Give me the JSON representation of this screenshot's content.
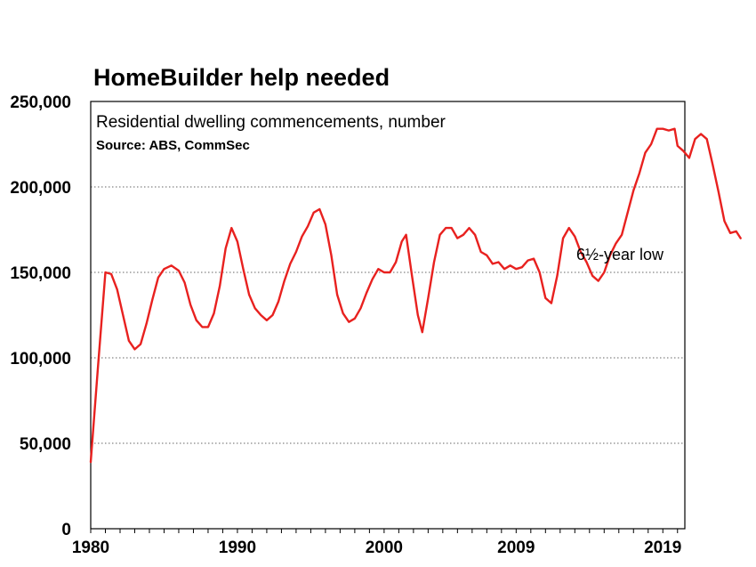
{
  "chart_data": {
    "type": "line",
    "title": "HomeBuilder help needed",
    "subtitle": "Residential dwelling commencements, number",
    "source": "Source: ABS, CommSec",
    "annotation": "6½-year low",
    "y_ticks": [
      0,
      50000,
      100000,
      150000,
      200000,
      250000
    ],
    "y_tick_labels": [
      "0",
      "50,000",
      "100,000",
      "150,000",
      "200,000",
      "250,000"
    ],
    "x_tick_labels": [
      "1980",
      "1990",
      "2000",
      "2009",
      "2019"
    ],
    "x_tick_values": [
      1980,
      1990,
      2000,
      2009,
      2019
    ],
    "xlim": [
      1980,
      2020.5
    ],
    "ylim": [
      0,
      250000
    ],
    "grid": "horizontal dotted",
    "line_color": "#e8211f",
    "series": [
      {
        "values": [
          [
            1980.0,
            39000
          ],
          [
            1980.5,
            95000
          ],
          [
            1981.0,
            150000
          ],
          [
            1981.4,
            149000
          ],
          [
            1981.8,
            140000
          ],
          [
            1982.2,
            125000
          ],
          [
            1982.6,
            110000
          ],
          [
            1983.0,
            105000
          ],
          [
            1983.4,
            108000
          ],
          [
            1983.8,
            120000
          ],
          [
            1984.2,
            134000
          ],
          [
            1984.6,
            147000
          ],
          [
            1985.0,
            152000
          ],
          [
            1985.5,
            154000
          ],
          [
            1986.0,
            151000
          ],
          [
            1986.4,
            144000
          ],
          [
            1986.8,
            131000
          ],
          [
            1987.2,
            122000
          ],
          [
            1987.6,
            118000
          ],
          [
            1988.0,
            118000
          ],
          [
            1988.4,
            126000
          ],
          [
            1988.8,
            142000
          ],
          [
            1989.2,
            164000
          ],
          [
            1989.6,
            176000
          ],
          [
            1990.0,
            168000
          ],
          [
            1990.4,
            152000
          ],
          [
            1990.8,
            137000
          ],
          [
            1991.2,
            129000
          ],
          [
            1991.6,
            125000
          ],
          [
            1992.0,
            122000
          ],
          [
            1992.4,
            125000
          ],
          [
            1992.8,
            133000
          ],
          [
            1993.2,
            145000
          ],
          [
            1993.6,
            155000
          ],
          [
            1994.0,
            162000
          ],
          [
            1994.4,
            171000
          ],
          [
            1994.8,
            177000
          ],
          [
            1995.2,
            185000
          ],
          [
            1995.6,
            187000
          ],
          [
            1996.0,
            178000
          ],
          [
            1996.4,
            160000
          ],
          [
            1996.8,
            137000
          ],
          [
            1997.2,
            126000
          ],
          [
            1997.6,
            121000
          ],
          [
            1998.0,
            123000
          ],
          [
            1998.4,
            129000
          ],
          [
            1998.8,
            138000
          ],
          [
            1999.2,
            146000
          ],
          [
            1999.6,
            152000
          ],
          [
            2000.0,
            150000
          ],
          [
            2000.4,
            150000
          ],
          [
            2000.8,
            156000
          ],
          [
            2001.2,
            168000
          ],
          [
            2001.5,
            172000
          ],
          [
            2001.9,
            148000
          ],
          [
            2002.3,
            125000
          ],
          [
            2002.6,
            115000
          ],
          [
            2003.0,
            135000
          ],
          [
            2003.4,
            156000
          ],
          [
            2003.8,
            172000
          ],
          [
            2004.2,
            176000
          ],
          [
            2004.6,
            176000
          ],
          [
            2005.0,
            170000
          ],
          [
            2005.4,
            172000
          ],
          [
            2005.8,
            176000
          ],
          [
            2006.2,
            172000
          ],
          [
            2006.6,
            162000
          ],
          [
            2007.0,
            160000
          ],
          [
            2007.4,
            155000
          ],
          [
            2007.8,
            156000
          ],
          [
            2008.2,
            152000
          ],
          [
            2008.6,
            154000
          ],
          [
            2009.0,
            152000
          ],
          [
            2009.4,
            153000
          ],
          [
            2009.8,
            157000
          ],
          [
            2010.2,
            158000
          ],
          [
            2010.6,
            150000
          ],
          [
            2011.0,
            135000
          ],
          [
            2011.4,
            132000
          ],
          [
            2011.8,
            148000
          ],
          [
            2012.2,
            170000
          ],
          [
            2012.6,
            176000
          ],
          [
            2013.0,
            171000
          ],
          [
            2013.4,
            162000
          ],
          [
            2013.8,
            156000
          ],
          [
            2014.2,
            148000
          ],
          [
            2014.6,
            145000
          ],
          [
            2015.0,
            150000
          ],
          [
            2015.4,
            160000
          ],
          [
            2015.8,
            167000
          ],
          [
            2016.2,
            172000
          ],
          [
            2016.6,
            185000
          ],
          [
            2017.0,
            198000
          ],
          [
            2017.4,
            208000
          ],
          [
            2017.8,
            220000
          ],
          [
            2018.2,
            225000
          ],
          [
            2018.6,
            234000
          ],
          [
            2019.0,
            234000
          ],
          [
            2019.4,
            233000
          ],
          [
            2019.8,
            234000
          ],
          [
            2020.0,
            224000
          ],
          [
            2020.4,
            221000
          ],
          [
            2020.8,
            217000
          ],
          [
            2021.2,
            228000
          ],
          [
            2021.6,
            231000
          ],
          [
            2022.0,
            228000
          ],
          [
            2022.4,
            213000
          ],
          [
            2022.8,
            197000
          ],
          [
            2023.2,
            180000
          ],
          [
            2023.6,
            173000
          ],
          [
            2024.0,
            174000
          ],
          [
            2024.3,
            170000
          ]
        ]
      }
    ]
  }
}
